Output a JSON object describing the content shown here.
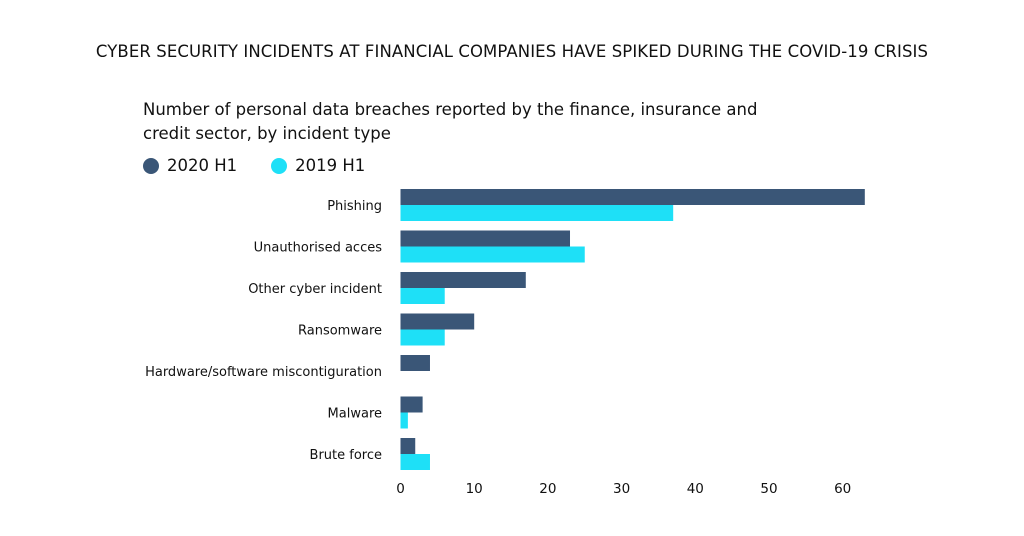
{
  "header": {
    "title": "CYBER SECURITY INCIDENTS AT FINANCIAL COMPANIES HAVE SPIKED DURING THE COVID-19 CRISIS"
  },
  "chart_data": {
    "type": "bar",
    "orientation": "horizontal",
    "title": "Number of personal data breaches reported by the finance, insurance and credit sector, by incident type",
    "categories": [
      "Phishing",
      "Unauthorised acces",
      "Other cyber incident",
      "Ransomware",
      "Hardware/software miscontiguration",
      "Malware",
      "Brute force"
    ],
    "series": [
      {
        "name": "2020 H1",
        "color": "#3a5677",
        "values": [
          63,
          23,
          17,
          10,
          4,
          3,
          2
        ]
      },
      {
        "name": "2019 H1",
        "color": "#1ee0f7",
        "values": [
          37,
          25,
          6,
          6,
          0,
          1,
          4
        ]
      }
    ],
    "xlim": [
      0,
      65
    ],
    "xticks": [
      "0",
      "10",
      "20",
      "30",
      "40",
      "50",
      "60"
    ],
    "legend_position": "top-left",
    "grid": false
  }
}
